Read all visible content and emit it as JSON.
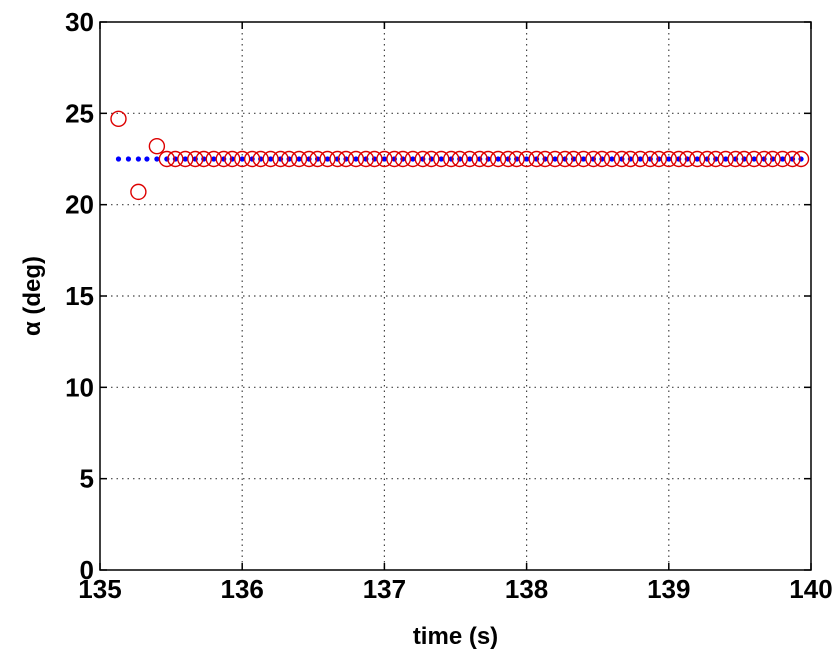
{
  "chart_data": {
    "type": "scatter",
    "title": "",
    "xlabel": "time (s)",
    "ylabel": "α (deg)",
    "xlim": [
      135,
      140
    ],
    "ylim": [
      0,
      30
    ],
    "xticks": [
      135,
      136,
      137,
      138,
      139,
      140
    ],
    "yticks": [
      0,
      5,
      10,
      15,
      20,
      25,
      30
    ],
    "xtick_labels": [
      "135",
      "136",
      "137",
      "138",
      "139",
      "140"
    ],
    "ytick_labels": [
      "0",
      "5",
      "10",
      "15",
      "20",
      "25",
      "30"
    ],
    "grid": true,
    "colors": {
      "dots": "#0000ff",
      "circles": "#dd0000",
      "grid": "#444444",
      "axes": "#000000"
    },
    "series": [
      {
        "marker": "dot",
        "x": [
          135.13,
          135.2,
          135.27,
          135.33,
          135.4,
          135.47,
          135.53,
          135.6,
          135.67,
          135.73,
          135.8,
          135.87,
          135.93,
          136.0,
          136.07,
          136.13,
          136.2,
          136.27,
          136.33,
          136.4,
          136.47,
          136.53,
          136.6,
          136.67,
          136.73,
          136.8,
          136.87,
          136.93,
          137.0,
          137.07,
          137.13,
          137.2,
          137.27,
          137.33,
          137.4,
          137.47,
          137.53,
          137.6,
          137.67,
          137.73,
          137.8,
          137.87,
          137.93,
          138.0,
          138.07,
          138.13,
          138.2,
          138.27,
          138.33,
          138.4,
          138.47,
          138.53,
          138.6,
          138.67,
          138.73,
          138.8,
          138.87,
          138.93,
          139.0,
          139.07,
          139.13,
          139.2,
          139.27,
          139.33,
          139.4,
          139.47,
          139.53,
          139.6,
          139.67,
          139.73,
          139.8,
          139.87,
          139.93
        ],
        "y": [
          22.5,
          22.5,
          22.5,
          22.5,
          22.5,
          22.5,
          22.5,
          22.5,
          22.5,
          22.5,
          22.5,
          22.5,
          22.5,
          22.5,
          22.5,
          22.5,
          22.5,
          22.5,
          22.5,
          22.5,
          22.5,
          22.5,
          22.5,
          22.5,
          22.5,
          22.5,
          22.5,
          22.5,
          22.5,
          22.5,
          22.5,
          22.5,
          22.5,
          22.5,
          22.5,
          22.5,
          22.5,
          22.5,
          22.5,
          22.5,
          22.5,
          22.5,
          22.5,
          22.5,
          22.5,
          22.5,
          22.5,
          22.5,
          22.5,
          22.5,
          22.5,
          22.5,
          22.5,
          22.5,
          22.5,
          22.5,
          22.5,
          22.5,
          22.5,
          22.5,
          22.5,
          22.5,
          22.5,
          22.5,
          22.5,
          22.5,
          22.5,
          22.5,
          22.5,
          22.5,
          22.5,
          22.5,
          22.5
        ]
      },
      {
        "marker": "circle",
        "x": [
          135.13,
          135.27,
          135.4,
          135.47,
          135.53,
          135.6,
          135.67,
          135.73,
          135.8,
          135.87,
          135.93,
          136.0,
          136.07,
          136.13,
          136.2,
          136.27,
          136.33,
          136.4,
          136.47,
          136.53,
          136.6,
          136.67,
          136.73,
          136.8,
          136.87,
          136.93,
          137.0,
          137.07,
          137.13,
          137.2,
          137.27,
          137.33,
          137.4,
          137.47,
          137.53,
          137.6,
          137.67,
          137.73,
          137.8,
          137.87,
          137.93,
          138.0,
          138.07,
          138.13,
          138.2,
          138.27,
          138.33,
          138.4,
          138.47,
          138.53,
          138.6,
          138.67,
          138.73,
          138.8,
          138.87,
          138.93,
          139.0,
          139.07,
          139.13,
          139.2,
          139.27,
          139.33,
          139.4,
          139.47,
          139.53,
          139.6,
          139.67,
          139.73,
          139.8,
          139.87,
          139.93
        ],
        "y": [
          24.7,
          20.7,
          23.2,
          22.5,
          22.5,
          22.5,
          22.5,
          22.5,
          22.5,
          22.5,
          22.5,
          22.5,
          22.5,
          22.5,
          22.5,
          22.5,
          22.5,
          22.5,
          22.5,
          22.5,
          22.5,
          22.5,
          22.5,
          22.5,
          22.5,
          22.5,
          22.5,
          22.5,
          22.5,
          22.5,
          22.5,
          22.5,
          22.5,
          22.5,
          22.5,
          22.5,
          22.5,
          22.5,
          22.5,
          22.5,
          22.5,
          22.5,
          22.5,
          22.5,
          22.5,
          22.5,
          22.5,
          22.5,
          22.5,
          22.5,
          22.5,
          22.5,
          22.5,
          22.5,
          22.5,
          22.5,
          22.5,
          22.5,
          22.5,
          22.5,
          22.5,
          22.5,
          22.5,
          22.5,
          22.5,
          22.5,
          22.5,
          22.5,
          22.5,
          22.5,
          22.5
        ]
      }
    ]
  }
}
